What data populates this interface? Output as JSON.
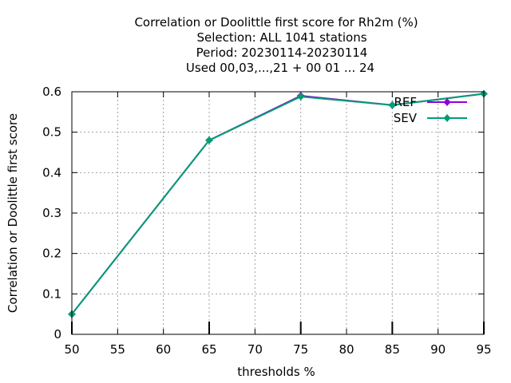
{
  "chart_data": {
    "type": "line",
    "title_lines": [
      "Correlation or Doolittle first score  for Rh2m (%)",
      "Selection: ALL   1041 stations",
      "Period: 20230114-20230114",
      "Used  00,03,...,21  + 00 01 ... 24"
    ],
    "xlabel": "thresholds %",
    "ylabel": "Correlation or Doolittle first score",
    "xlim": [
      50,
      95
    ],
    "ylim": [
      0,
      0.6
    ],
    "x_ticks": [
      50,
      55,
      60,
      65,
      70,
      75,
      80,
      85,
      90,
      95
    ],
    "y_ticks": [
      0,
      0.1,
      0.2,
      0.3,
      0.4,
      0.5,
      0.6
    ],
    "x_tick_labels": [
      "50",
      "55",
      "60",
      "65",
      "70",
      "75",
      "80",
      "85",
      "90",
      "95"
    ],
    "y_tick_labels": [
      "0",
      "0.1",
      "0.2",
      "0.3",
      "0.4",
      "0.5",
      "0.6"
    ],
    "grid": true,
    "legend_position": "top-right",
    "series": [
      {
        "name": "REF",
        "color": "#9400d3",
        "x": [
          50,
          65,
          75,
          85,
          95
        ],
        "y": [
          0.05,
          0.48,
          0.59,
          0.567,
          0.595
        ]
      },
      {
        "name": "SEV",
        "color": "#009e73",
        "x": [
          50,
          65,
          75,
          85,
          95
        ],
        "y": [
          0.05,
          0.48,
          0.588,
          0.567,
          0.595
        ]
      }
    ]
  }
}
